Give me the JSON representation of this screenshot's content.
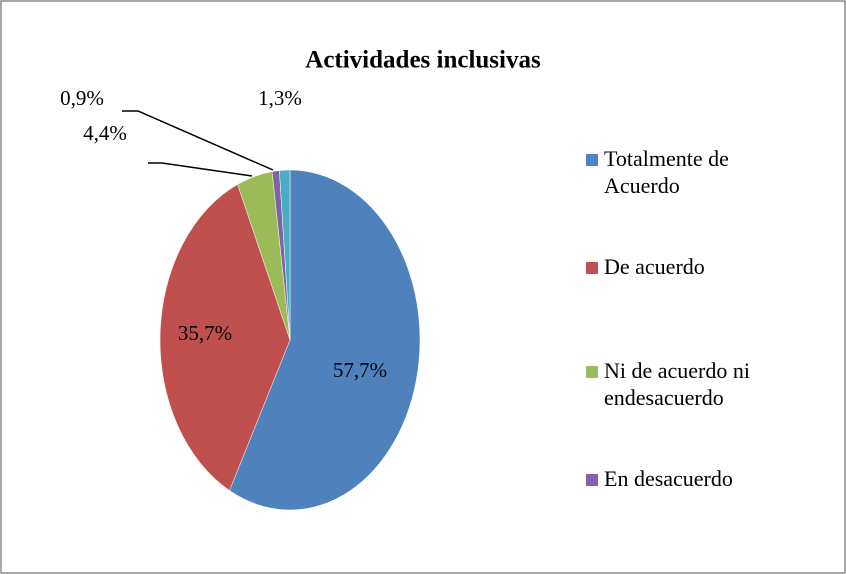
{
  "chart_data": {
    "type": "pie",
    "title": "Actividades inclusivas",
    "categories": [
      "Totalmente de Acuerdo",
      "De acuerdo",
      "Ni de acuerdo ni endesacuerdo",
      "En desacuerdo",
      null
    ],
    "values": [
      57.7,
      35.7,
      4.4,
      0.9,
      1.3
    ],
    "value_labels": [
      "57,7%",
      "35,7%",
      "4,4%",
      "0,9%",
      "1,3%"
    ],
    "colors": [
      "#4f81bd",
      "#c0504d",
      "#9bbb59",
      "#8064a2",
      "#4bacc6"
    ],
    "legend": "right"
  }
}
